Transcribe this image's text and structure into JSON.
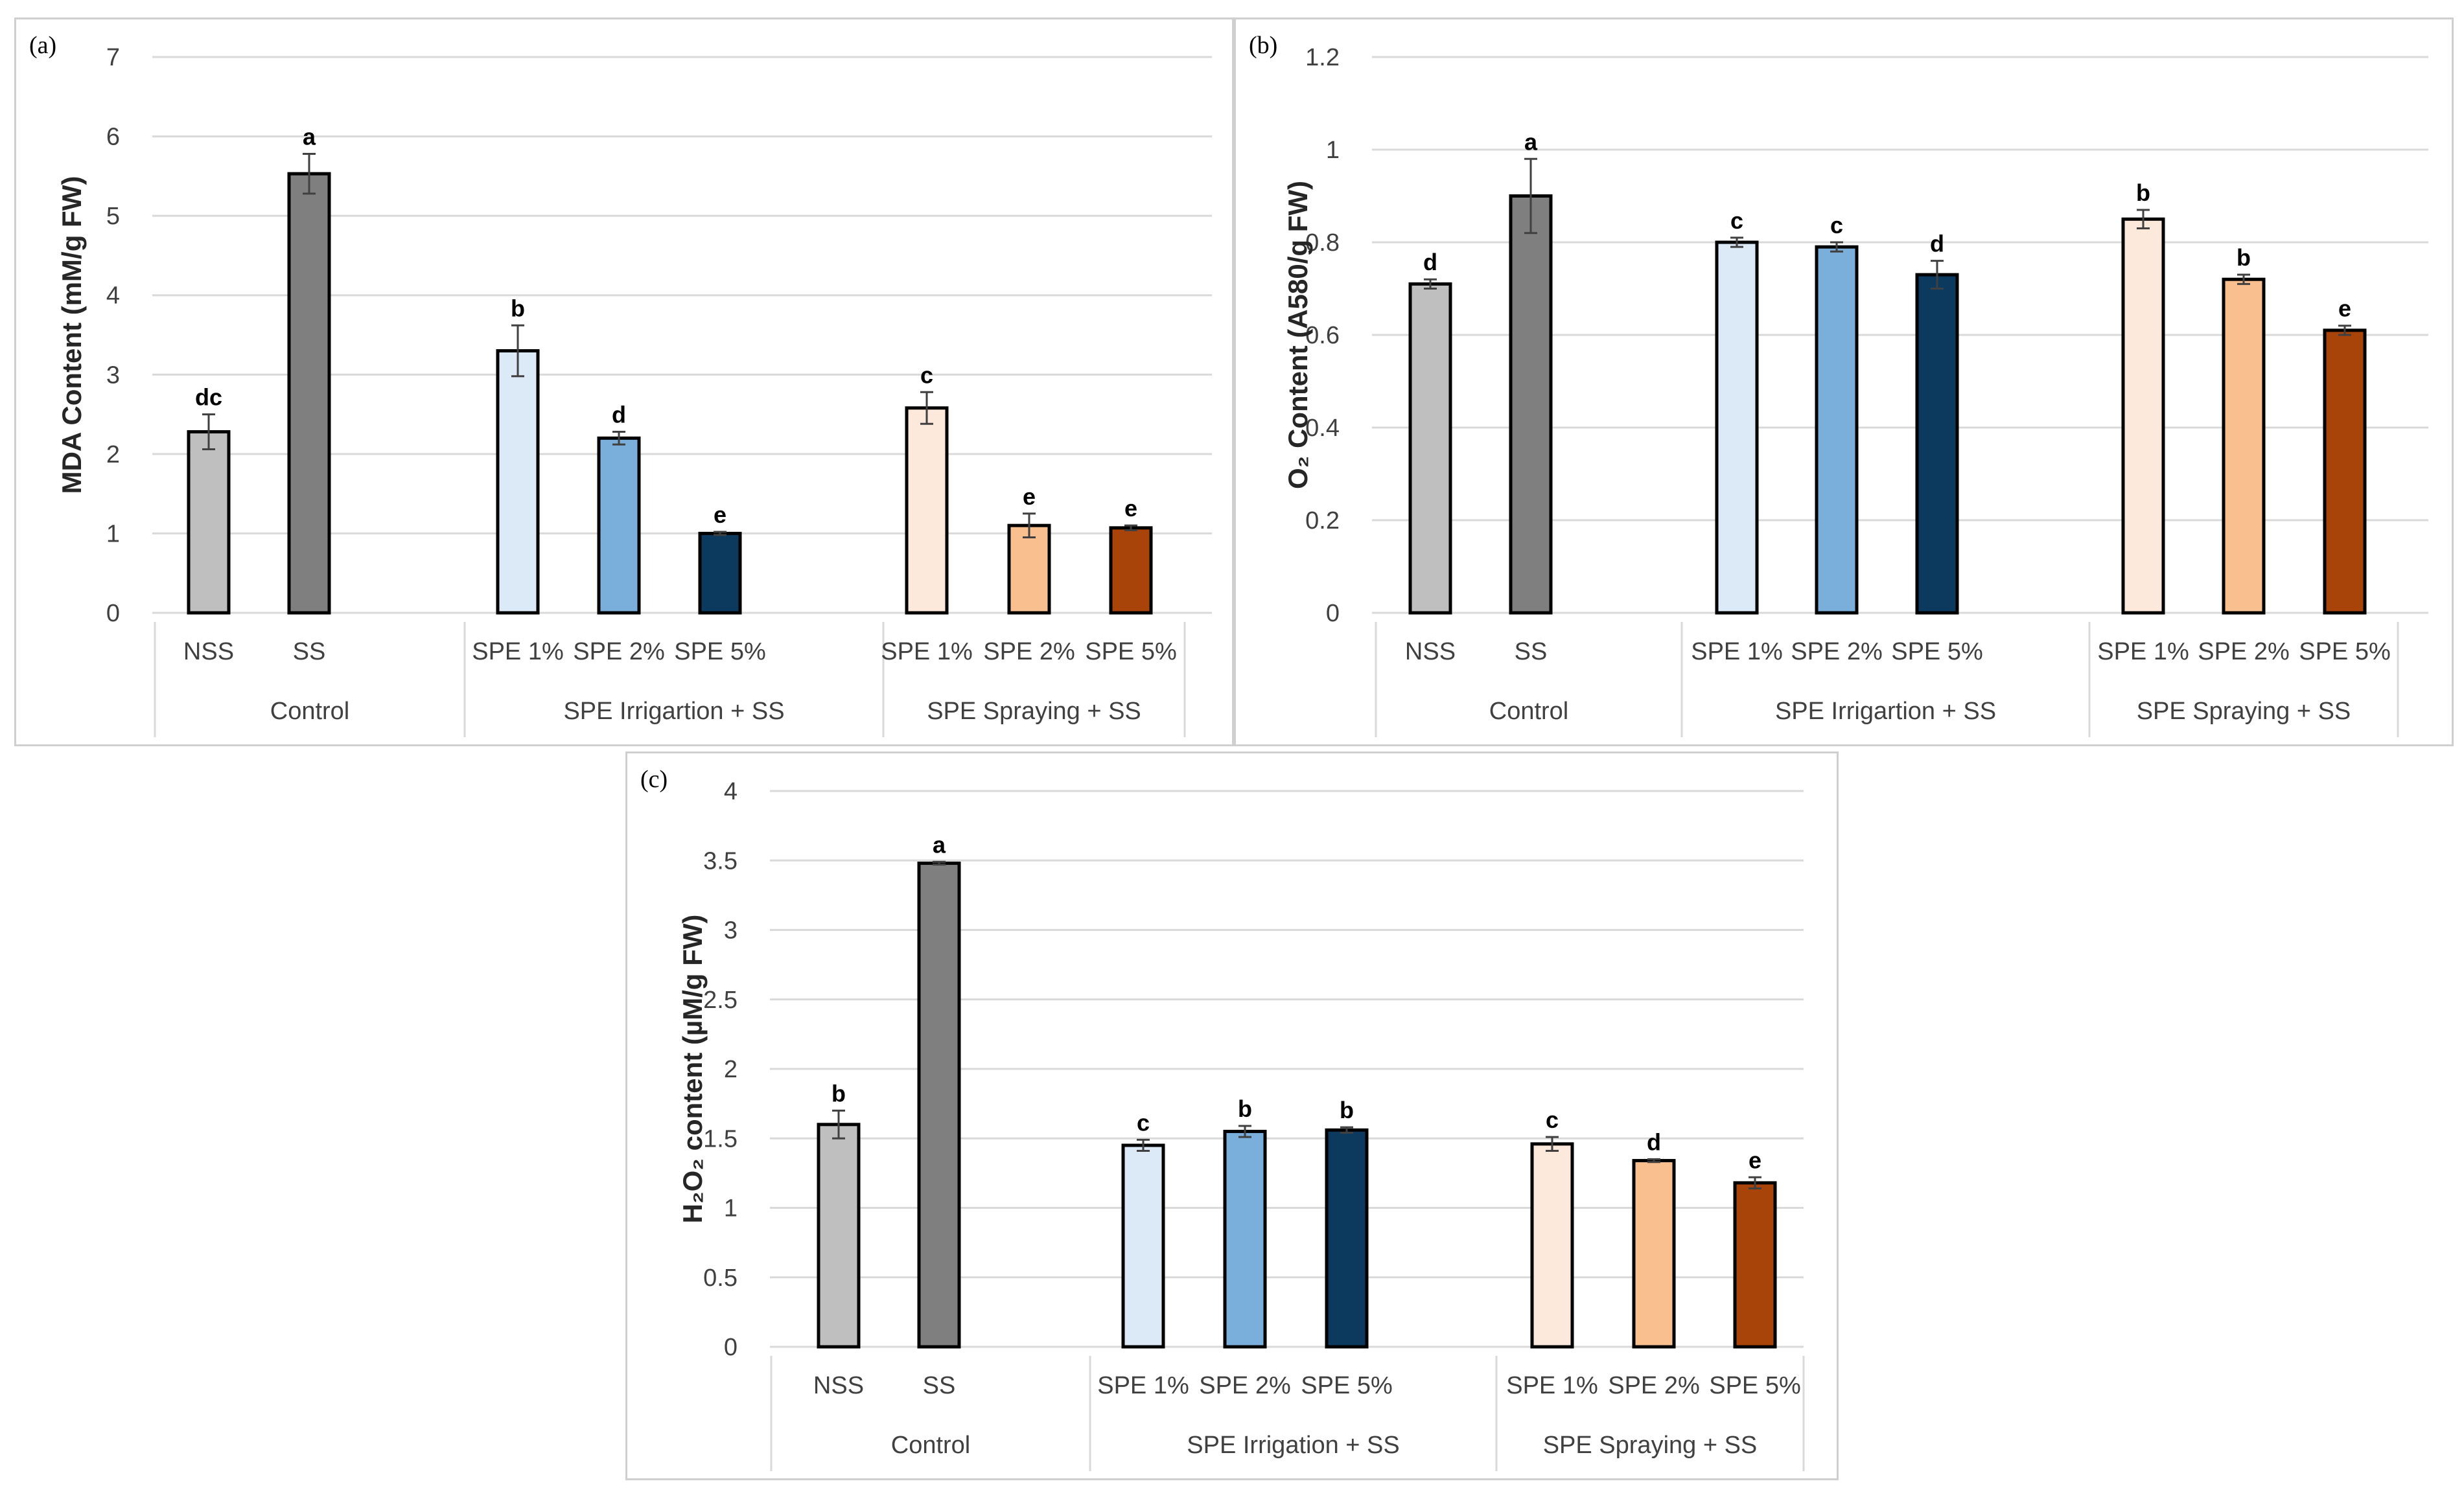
{
  "colors": [
    "#bfbfbf",
    "#7f7f7f",
    "#dce9f6",
    "#7aaedb",
    "#0b3a5e",
    "#fde9dc",
    "#f9bf8f",
    "#a8430a"
  ],
  "chart_data": [
    {
      "type": "bar",
      "panel_label": "(a)",
      "ylabel": "MDA Content (mM/g FW)",
      "ylim": [
        0,
        7
      ],
      "yticks": [
        "0",
        "1",
        "2",
        "3",
        "4",
        "5",
        "6",
        "7"
      ],
      "yticks_values": [
        0,
        1,
        2,
        3,
        4,
        5,
        6,
        7
      ],
      "categories": [
        "NSS",
        "SS",
        "SPE 1%",
        "SPE 2%",
        "SPE 5%",
        "SPE 1%",
        "SPE 2%",
        "SPE 5%"
      ],
      "groups": [
        "Control",
        "SPE Irrigartion + SS",
        "SPE Spraying + SS"
      ],
      "values": [
        2.28,
        5.53,
        3.3,
        2.2,
        1.0,
        2.58,
        1.1,
        1.07
      ],
      "errors": [
        0.22,
        0.25,
        0.32,
        0.08,
        0.02,
        0.2,
        0.15,
        0.03
      ],
      "significance": [
        "dc",
        "a",
        "b",
        "d",
        "e",
        "c",
        "e",
        "e"
      ],
      "grid": true
    },
    {
      "type": "bar",
      "panel_label": "(b)",
      "ylabel": "O₂ Content (A580/g FW)",
      "ylim": [
        0,
        1.2
      ],
      "yticks": [
        "0",
        "0.2",
        "0.4",
        "0.6",
        "0.8",
        "1",
        "1.2"
      ],
      "yticks_values": [
        0,
        0.2,
        0.4,
        0.6,
        0.8,
        1,
        1.2
      ],
      "categories": [
        "NSS",
        "SS",
        "SPE 1%",
        "SPE 2%",
        "SPE 5%",
        "SPE 1%",
        "SPE 2%",
        "SPE 5%"
      ],
      "groups": [
        "Control",
        "SPE Irrigartion + SS",
        "SPE Spraying + SS"
      ],
      "values": [
        0.71,
        0.9,
        0.8,
        0.79,
        0.73,
        0.85,
        0.72,
        0.61
      ],
      "errors": [
        0.01,
        0.08,
        0.01,
        0.01,
        0.03,
        0.02,
        0.01,
        0.01
      ],
      "significance": [
        "d",
        "a",
        "c",
        "c",
        "d",
        "b",
        "b",
        "e"
      ],
      "grid": true
    },
    {
      "type": "bar",
      "panel_label": "(c)",
      "ylabel": "H₂O₂ content (µM/g FW)",
      "ylim": [
        0,
        4
      ],
      "yticks": [
        "0",
        "0.5",
        "1",
        "1.5",
        "2",
        "2.5",
        "3",
        "3.5",
        "4"
      ],
      "yticks_values": [
        0,
        0.5,
        1,
        1.5,
        2,
        2.5,
        3,
        3.5,
        4
      ],
      "categories": [
        "NSS",
        "SS",
        "SPE 1%",
        "SPE 2%",
        "SPE 5%",
        "SPE 1%",
        "SPE 2%",
        "SPE 5%"
      ],
      "groups": [
        "Control",
        "SPE Irrigation + SS",
        "SPE Spraying + SS"
      ],
      "values": [
        1.6,
        3.48,
        1.45,
        1.55,
        1.56,
        1.46,
        1.34,
        1.18
      ],
      "errors": [
        0.1,
        0.01,
        0.04,
        0.04,
        0.02,
        0.05,
        0.01,
        0.04
      ],
      "significance": [
        "b",
        "a",
        "c",
        "b",
        "b",
        "c",
        "d",
        "e"
      ],
      "grid": true
    }
  ]
}
